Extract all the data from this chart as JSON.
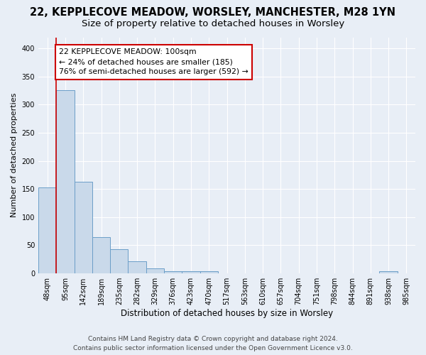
{
  "title": "22, KEPPLECOVE MEADOW, WORSLEY, MANCHESTER, M28 1YN",
  "subtitle": "Size of property relative to detached houses in Worsley",
  "xlabel": "Distribution of detached houses by size in Worsley",
  "ylabel": "Number of detached properties",
  "bar_values": [
    152,
    326,
    163,
    64,
    43,
    21,
    9,
    4,
    4,
    4,
    0,
    0,
    0,
    0,
    0,
    0,
    0,
    0,
    0,
    4,
    0
  ],
  "bin_labels": [
    "48sqm",
    "95sqm",
    "142sqm",
    "189sqm",
    "235sqm",
    "282sqm",
    "329sqm",
    "376sqm",
    "423sqm",
    "470sqm",
    "517sqm",
    "563sqm",
    "610sqm",
    "657sqm",
    "704sqm",
    "751sqm",
    "798sqm",
    "844sqm",
    "891sqm",
    "938sqm",
    "985sqm"
  ],
  "bar_color": "#c9d9ea",
  "bar_edge_color": "#6b9ec8",
  "property_line_x": 1.0,
  "property_line_color": "#cc0000",
  "annotation_text": "22 KEPPLECOVE MEADOW: 100sqm\n← 24% of detached houses are smaller (185)\n76% of semi-detached houses are larger (592) →",
  "annotation_box_color": "#ffffff",
  "annotation_box_edge": "#cc0000",
  "ylim": [
    0,
    420
  ],
  "yticks": [
    0,
    50,
    100,
    150,
    200,
    250,
    300,
    350,
    400
  ],
  "footer_line1": "Contains HM Land Registry data © Crown copyright and database right 2024.",
  "footer_line2": "Contains public sector information licensed under the Open Government Licence v3.0.",
  "bg_color": "#e8eef6",
  "plot_bg_color": "#e8eef6",
  "grid_color": "#ffffff",
  "title_fontsize": 10.5,
  "subtitle_fontsize": 9.5,
  "ylabel_fontsize": 8,
  "xlabel_fontsize": 8.5,
  "tick_fontsize": 7,
  "footer_fontsize": 6.5
}
